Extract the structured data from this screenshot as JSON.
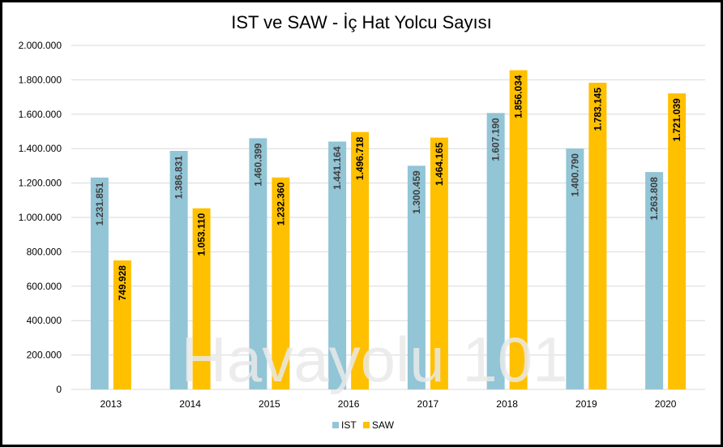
{
  "chart_data": {
    "type": "bar",
    "title": "IST ve SAW - İç Hat Yolcu Sayısı",
    "categories": [
      "2013",
      "2014",
      "2015",
      "2016",
      "2017",
      "2018",
      "2019",
      "2020"
    ],
    "series": [
      {
        "name": "IST",
        "color": "#92c5d6",
        "values": [
          1231851,
          1386831,
          1460399,
          1441164,
          1300459,
          1607190,
          1400790,
          1263808
        ],
        "labels": [
          "1.231.851",
          "1.386.831",
          "1.460.399",
          "1.441.164",
          "1.300.459",
          "1.607.190",
          "1.400.790",
          "1.263.808"
        ],
        "label_color": "#404040"
      },
      {
        "name": "SAW",
        "color": "#ffc000",
        "values": [
          749928,
          1053110,
          1232360,
          1496718,
          1464165,
          1856034,
          1783145,
          1721039
        ],
        "labels": [
          "749.928",
          "1.053.110",
          "1.232.360",
          "1.496.718",
          "1.464.165",
          "1.856.034",
          "1.783.145",
          "1.721.039"
        ],
        "label_color": "#000000"
      }
    ],
    "ylim": [
      0,
      2000000
    ],
    "yticks": [
      0,
      200000,
      400000,
      600000,
      800000,
      1000000,
      1200000,
      1400000,
      1600000,
      1800000,
      2000000
    ],
    "ytick_labels": [
      "0",
      "200.000",
      "400.000",
      "600.000",
      "800.000",
      "1.000.000",
      "1.200.000",
      "1.400.000",
      "1.600.000",
      "1.800.000",
      "2.000.000"
    ],
    "grid": true,
    "legend_position": "bottom-center",
    "watermark": "Havayolu 101"
  }
}
